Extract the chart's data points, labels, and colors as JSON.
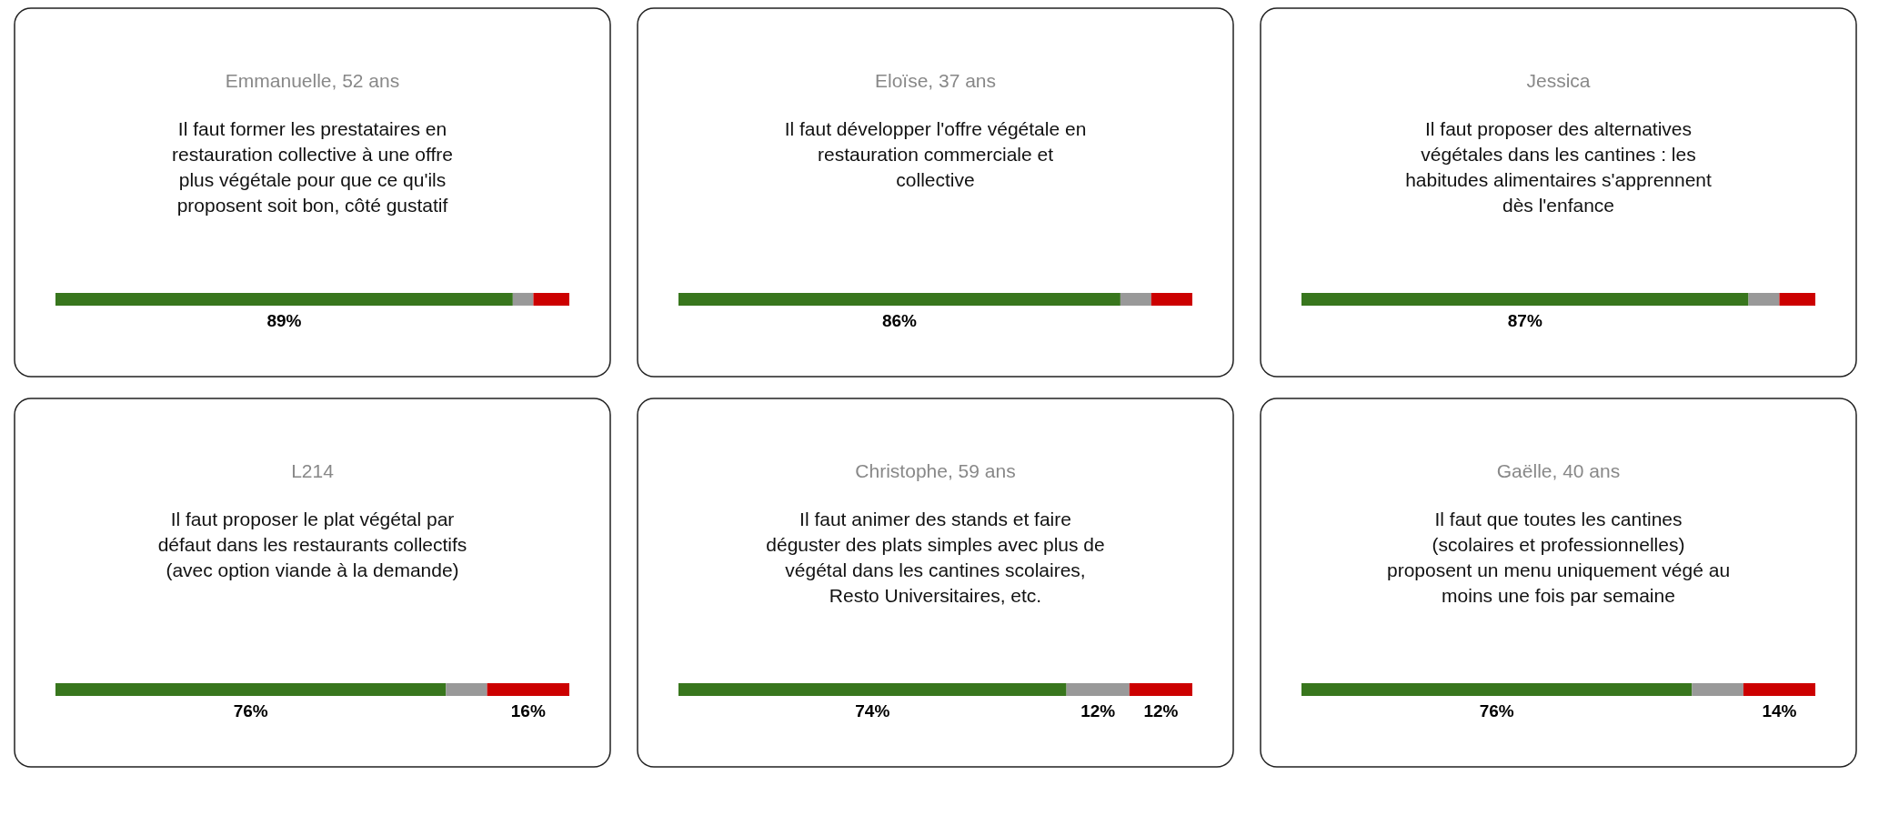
{
  "chart_data": [
    {
      "type": "bar",
      "orientation": "horizontal",
      "stacked": true,
      "title": "Emmanuelle, 52 ans",
      "subtitle": "Il faut former les prestataires en\nrestauration collective à une offre\nplus végétale pour que ce qu'ils\nproposent soit bon, côté gustatif",
      "categories": [
        null
      ],
      "series": [
        {
          "color": "#38761d",
          "values": [
            89
          ],
          "value_labels": [
            "89%"
          ]
        },
        {
          "color": "#999999",
          "values": [
            4
          ],
          "value_labels": [
            null
          ]
        },
        {
          "color": "#cc0000",
          "values": [
            7
          ],
          "value_labels": [
            null
          ]
        }
      ]
    },
    {
      "type": "bar",
      "orientation": "horizontal",
      "stacked": true,
      "title": "Eloïse, 37 ans",
      "subtitle": "Il faut développer l'offre végétale en\nrestauration commerciale et\ncollective",
      "categories": [
        null
      ],
      "series": [
        {
          "color": "#38761d",
          "values": [
            86
          ],
          "value_labels": [
            "86%"
          ]
        },
        {
          "color": "#999999",
          "values": [
            6
          ],
          "value_labels": [
            null
          ]
        },
        {
          "color": "#cc0000",
          "values": [
            8
          ],
          "value_labels": [
            null
          ]
        }
      ]
    },
    {
      "type": "bar",
      "orientation": "horizontal",
      "stacked": true,
      "title": "Jessica",
      "subtitle": "Il faut proposer des alternatives\nvégétales dans les cantines : les\nhabitudes alimentaires s'apprennent\ndès l'enfance",
      "categories": [
        null
      ],
      "series": [
        {
          "color": "#38761d",
          "values": [
            87
          ],
          "value_labels": [
            "87%"
          ]
        },
        {
          "color": "#999999",
          "values": [
            6
          ],
          "value_labels": [
            null
          ]
        },
        {
          "color": "#cc0000",
          "values": [
            7
          ],
          "value_labels": [
            null
          ]
        }
      ]
    },
    {
      "type": "bar",
      "orientation": "horizontal",
      "stacked": true,
      "title": "L214",
      "subtitle": "Il faut proposer le plat végétal par\ndéfaut dans les restaurants collectifs\n(avec option viande à la demande)",
      "categories": [
        null
      ],
      "series": [
        {
          "color": "#38761d",
          "values": [
            76
          ],
          "value_labels": [
            "76%"
          ]
        },
        {
          "color": "#999999",
          "values": [
            8
          ],
          "value_labels": [
            null
          ]
        },
        {
          "color": "#cc0000",
          "values": [
            16
          ],
          "value_labels": [
            "16%"
          ]
        }
      ]
    },
    {
      "type": "bar",
      "orientation": "horizontal",
      "stacked": true,
      "title": "Christophe, 59 ans",
      "subtitle": "Il faut animer des stands et faire\ndéguster des plats simples avec plus de\nvégétal dans les cantines scolaires,\nResto Universitaires, etc.",
      "categories": [
        null
      ],
      "series": [
        {
          "color": "#38761d",
          "values": [
            74
          ],
          "value_labels": [
            "74%"
          ]
        },
        {
          "color": "#999999",
          "values": [
            12
          ],
          "value_labels": [
            "12%"
          ]
        },
        {
          "color": "#cc0000",
          "values": [
            12
          ],
          "value_labels": [
            "12%"
          ]
        }
      ]
    },
    {
      "type": "bar",
      "orientation": "horizontal",
      "stacked": true,
      "title": "Gaëlle, 40 ans",
      "subtitle": "Il faut que toutes les cantines\n(scolaires et professionnelles)\nproposent un menu uniquement végé au\nmoins une fois par semaine",
      "categories": [
        null
      ],
      "series": [
        {
          "color": "#38761d",
          "values": [
            76
          ],
          "value_labels": [
            "76%"
          ]
        },
        {
          "color": "#999999",
          "values": [
            10
          ],
          "value_labels": [
            null
          ]
        },
        {
          "color": "#cc0000",
          "values": [
            14
          ],
          "value_labels": [
            "14%"
          ]
        }
      ]
    }
  ]
}
